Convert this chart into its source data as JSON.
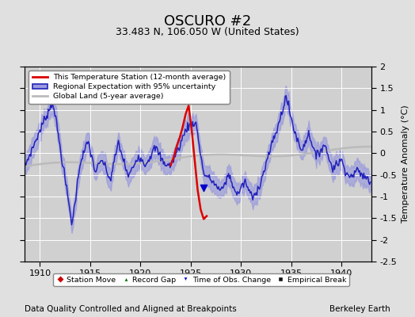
{
  "title": "OSCURO #2",
  "subtitle": "33.483 N, 106.050 W (United States)",
  "xlabel_bottom": "Data Quality Controlled and Aligned at Breakpoints",
  "xlabel_right": "Berkeley Earth",
  "ylabel": "Temperature Anomaly (°C)",
  "xlim": [
    1908.5,
    1943.0
  ],
  "ylim": [
    -2.5,
    2.0
  ],
  "yticks": [
    -2.5,
    -2.0,
    -1.5,
    -1.0,
    -0.5,
    0.0,
    0.5,
    1.0,
    1.5,
    2.0
  ],
  "xticks": [
    1910,
    1915,
    1920,
    1925,
    1930,
    1935,
    1940
  ],
  "bg_color": "#e0e0e0",
  "plot_bg_color": "#d0d0d0",
  "grid_color": "#ffffff",
  "regional_color": "#2222bb",
  "regional_fill": "#9999dd",
  "station_color": "#dd0000",
  "global_color": "#bbbbbb",
  "legend1_labels": [
    "This Temperature Station (12-month average)",
    "Regional Expectation with 95% uncertainty",
    "Global Land (5-year average)"
  ],
  "legend2_labels": [
    "Station Move",
    "Record Gap",
    "Time of Obs. Change",
    "Empirical Break"
  ],
  "marker_colors_legend": [
    "#cc0000",
    "#006600",
    "#0000cc",
    "#111111"
  ],
  "title_fontsize": 13,
  "subtitle_fontsize": 9,
  "tick_fontsize": 8,
  "label_fontsize": 7.5
}
